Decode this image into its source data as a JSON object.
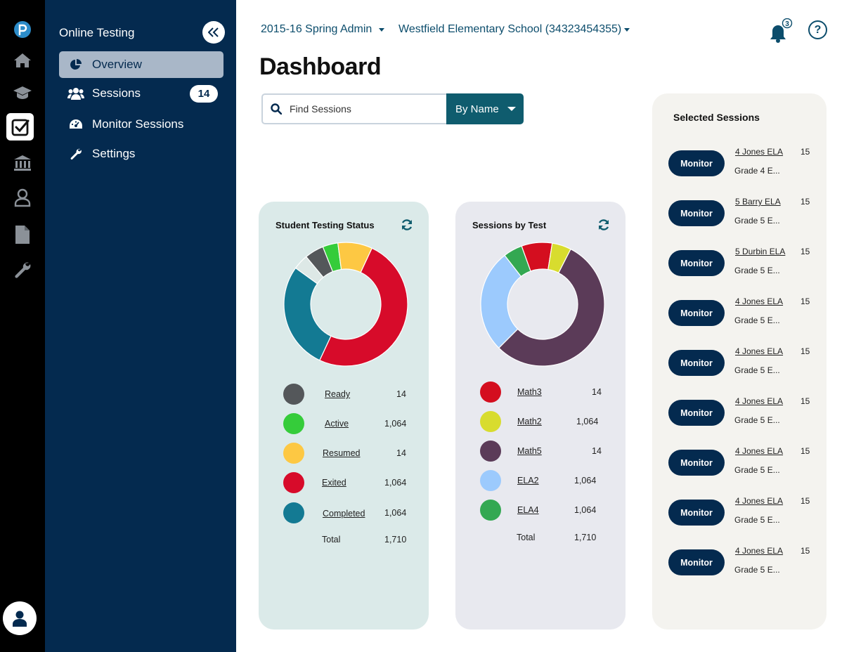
{
  "rail": {
    "items": [
      "logo-icon",
      "home-icon",
      "graduation-cap-icon",
      "checkbox-icon",
      "institution-icon",
      "user-icon",
      "document-icon",
      "wrench-icon"
    ],
    "avatar": "avatar-icon"
  },
  "nav": {
    "title": "Online Testing",
    "collapse_icon": "double-chevron-left-icon",
    "items": [
      {
        "label": "Overview",
        "icon": "pie-chart-icon"
      },
      {
        "label": "Sessions",
        "icon": "people-icon",
        "badge": "14"
      },
      {
        "label": "Monitor Sessions",
        "icon": "gauge-icon"
      },
      {
        "label": "Settings",
        "icon": "wrench-icon"
      }
    ]
  },
  "header": {
    "admin": "2015-16 Spring Admin",
    "school": "Westfield Elementary School (34323454355)",
    "notifications": "3",
    "help": "?"
  },
  "page": {
    "title": "Dashboard"
  },
  "search": {
    "placeholder": "Find Sessions",
    "mode": "By Name"
  },
  "colors": {
    "ready": "#54575a",
    "active": "#35cc3a",
    "resumed": "#fdc843",
    "exited": "#d70b2a",
    "completed": "#137a93",
    "untested": "#dde8e6",
    "math3": "#d40e1f",
    "math2": "#d8dc2e",
    "math5": "#5b3b58",
    "ela2": "#9ccafd",
    "ela4": "#33a852"
  },
  "status_card": {
    "title": "Student Testing Status",
    "legend": [
      {
        "label": "Ready",
        "value": "14"
      },
      {
        "label": "Active",
        "value": "1,064"
      },
      {
        "label": "Resumed",
        "value": "14"
      },
      {
        "label": "Exited",
        "value": "1,064"
      },
      {
        "label": "Completed",
        "value": "1,064"
      }
    ],
    "total_label": "Total",
    "total_value": "1,710"
  },
  "test_card": {
    "title": "Sessions by Test",
    "legend": [
      {
        "label": "Math3",
        "value": "14"
      },
      {
        "label": "Math2",
        "value": "1,064"
      },
      {
        "label": "Math5",
        "value": "14"
      },
      {
        "label": "ELA2",
        "value": "1,064"
      },
      {
        "label": "ELA4",
        "value": "1,064"
      }
    ],
    "total_label": "Total",
    "total_value": "1,710"
  },
  "chart_data": [
    {
      "type": "pie",
      "title": "Student Testing Status",
      "series": [
        {
          "values": [
            {
              "label": "Exited",
              "value": 50,
              "color": "#d70b2a"
            },
            {
              "label": "Completed",
              "value": 28,
              "color": "#137a93"
            },
            {
              "label": "",
              "value": 4,
              "color": "#dde8e6"
            },
            {
              "label": "Ready",
              "value": 5,
              "color": "#54575a"
            },
            {
              "label": "Active",
              "value": 4,
              "color": "#35cc3a"
            },
            {
              "label": "Resumed",
              "value": 9,
              "color": "#fdc843"
            }
          ]
        }
      ]
    },
    {
      "type": "pie",
      "title": "Sessions by Test",
      "series": [
        {
          "values": [
            {
              "label": "Math5",
              "value": 55,
              "color": "#5b3b58"
            },
            {
              "label": "ELA2",
              "value": 27,
              "color": "#9ccafd"
            },
            {
              "label": "ELA4",
              "value": 5,
              "color": "#33a852"
            },
            {
              "label": "Math3",
              "value": 8,
              "color": "#d40e1f"
            },
            {
              "label": "Math2",
              "value": 5,
              "color": "#d8dc2e"
            }
          ]
        }
      ]
    }
  ],
  "selected": {
    "title": "Selected Sessions",
    "button_label": "Monitor",
    "sessions": [
      {
        "name": "4 Jones ELA",
        "grade": "Grade 4 E...",
        "count": "15"
      },
      {
        "name": "5 Barry ELA",
        "grade": "Grade 5 E...",
        "count": "15"
      },
      {
        "name": "5 Durbin ELA",
        "grade": "Grade 5 E...",
        "count": "15"
      },
      {
        "name": "4 Jones ELA",
        "grade": "Grade 5 E...",
        "count": "15"
      },
      {
        "name": "4 Jones ELA",
        "grade": "Grade 5 E...",
        "count": "15"
      },
      {
        "name": "4 Jones ELA",
        "grade": "Grade 5 E...",
        "count": "15"
      },
      {
        "name": "4 Jones ELA",
        "grade": "Grade 5 E...",
        "count": "15"
      },
      {
        "name": "4 Jones ELA",
        "grade": "Grade 5 E...",
        "count": "15"
      },
      {
        "name": "4 Jones ELA",
        "grade": "Grade 5 E...",
        "count": "15"
      }
    ]
  }
}
